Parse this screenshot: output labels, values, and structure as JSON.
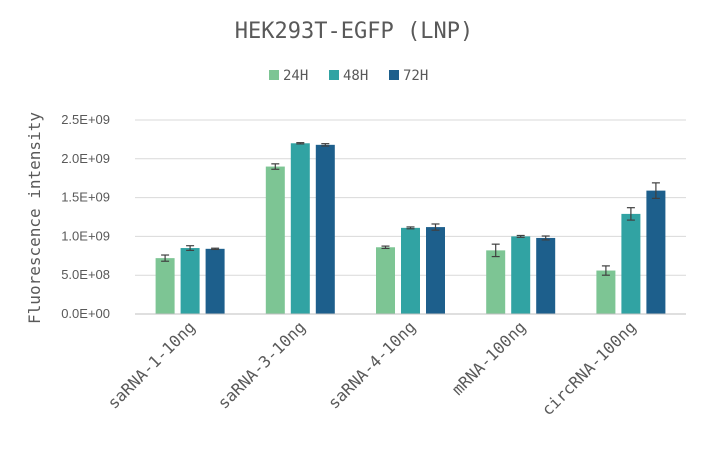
{
  "chart_data": {
    "type": "bar",
    "title": "HEK293T-EGFP (LNP)",
    "xlabel": "",
    "ylabel": "Fluorescence intensity",
    "categories": [
      "saRNA-1-10ng",
      "saRNA-3-10ng",
      "saRNA-4-10ng",
      "mRNA-100ng",
      "circRNA-100ng"
    ],
    "series": [
      {
        "name": "24H",
        "color": "#7dc594",
        "values": [
          720000000,
          1900000000,
          860000000,
          820000000,
          560000000
        ],
        "errors": [
          40000000,
          35000000,
          15000000,
          80000000,
          60000000
        ]
      },
      {
        "name": "48H",
        "color": "#31a3a3",
        "values": [
          850000000,
          2200000000,
          1110000000,
          1000000000,
          1290000000
        ],
        "errors": [
          30000000,
          8000000,
          12000000,
          12000000,
          80000000
        ]
      },
      {
        "name": "72H",
        "color": "#1d5f8c",
        "values": [
          840000000,
          2180000000,
          1120000000,
          980000000,
          1590000000
        ],
        "errors": [
          8000000,
          15000000,
          40000000,
          25000000,
          100000000
        ]
      }
    ],
    "ylim": [
      0,
      2500000000
    ],
    "yticks": [
      0,
      500000000,
      1000000000,
      1500000000,
      2000000000,
      2500000000
    ],
    "ytick_labels": [
      "0.0E+00",
      "5.0E+08",
      "1.0E+09",
      "1.5E+09",
      "2.0E+09",
      "2.5E+09"
    ],
    "grid": true,
    "legend_position": "top-center"
  }
}
